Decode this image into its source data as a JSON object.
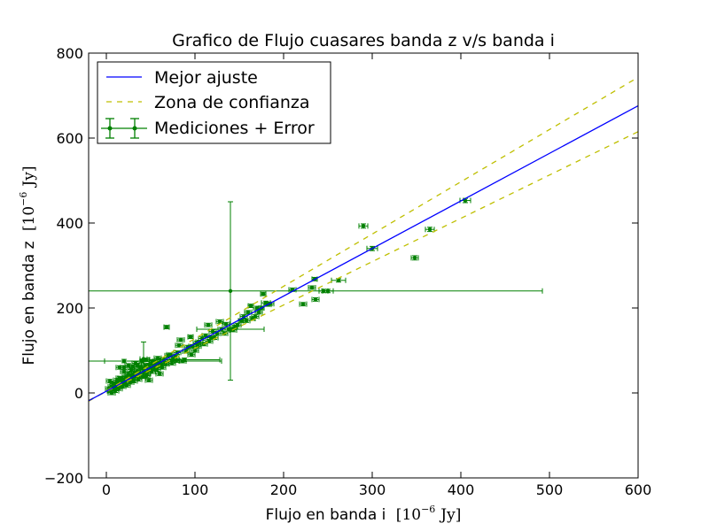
{
  "chart_data": {
    "type": "scatter",
    "title": "Grafico de Flujo cuasares banda z v/s banda i",
    "xlabel": {
      "prefix": "Flujo en banda i",
      "unit_base": "10",
      "unit_exp": "−6",
      "unit_name": "Jy"
    },
    "ylabel": {
      "prefix": "Flujo en banda z",
      "unit_base": "10",
      "unit_exp": "−6",
      "unit_name": "Jy"
    },
    "xlim": [
      -20,
      600
    ],
    "ylim": [
      -200,
      800
    ],
    "xticks": [
      0,
      100,
      200,
      300,
      400,
      500,
      600
    ],
    "yticks": [
      -200,
      0,
      200,
      400,
      600,
      800
    ],
    "grid": false,
    "legend_position": "upper-left",
    "legend": [
      "Mejor ajuste",
      "Zona de confianza",
      "Mediciones + Error"
    ],
    "colors": {
      "fit": "#0000ff",
      "confidence": "#bfbf00",
      "measurements": "#008000"
    },
    "fit_line": {
      "name": "Mejor ajuste",
      "slope": 1.12,
      "intercept": 4
    },
    "confidence_lines": [
      {
        "name": "Zona de confianza",
        "slope": 1.23,
        "intercept": 5
      },
      {
        "name": "",
        "slope": 1.02,
        "intercept": 3
      }
    ],
    "series": [
      {
        "name": "Mediciones + Error",
        "points": [
          [
            405,
            453,
            6,
            5
          ],
          [
            365,
            385,
            5,
            5
          ],
          [
            348,
            318,
            4,
            5
          ],
          [
            300,
            340,
            6,
            5
          ],
          [
            290,
            393,
            5,
            5
          ],
          [
            262,
            265,
            8,
            4
          ],
          [
            250,
            240,
            6,
            4
          ],
          [
            245,
            240,
            5,
            4
          ],
          [
            236,
            220,
            4,
            4
          ],
          [
            232,
            248,
            4,
            4
          ],
          [
            235,
            268,
            3,
            4
          ],
          [
            222,
            209,
            4,
            4
          ],
          [
            210,
            243,
            4,
            4
          ],
          [
            185,
            210,
            4,
            4
          ],
          [
            180,
            212,
            5,
            4
          ],
          [
            177,
            233,
            3,
            4
          ],
          [
            175,
            200,
            3,
            4
          ],
          [
            172,
            190,
            4,
            4
          ],
          [
            168,
            180,
            4,
            4
          ],
          [
            165,
            175,
            3,
            4
          ],
          [
            163,
            205,
            3,
            4
          ],
          [
            155,
            180,
            4,
            4
          ],
          [
            152,
            170,
            3,
            4
          ],
          [
            148,
            160,
            4,
            4
          ],
          [
            145,
            155,
            3,
            4
          ],
          [
            140,
            240,
            352,
            210
          ],
          [
            135,
            162,
            4,
            4
          ],
          [
            130,
            150,
            4,
            4
          ],
          [
            128,
            168,
            4,
            4
          ],
          [
            125,
            140,
            4,
            4
          ],
          [
            120,
            145,
            4,
            4
          ],
          [
            118,
            130,
            4,
            4
          ],
          [
            115,
            160,
            4,
            4
          ],
          [
            112,
            135,
            4,
            4
          ],
          [
            108,
            128,
            4,
            4
          ],
          [
            105,
            120,
            4,
            4
          ],
          [
            102,
            118,
            4,
            4
          ],
          [
            100,
            100,
            4,
            4
          ],
          [
            97,
            110,
            4,
            4
          ],
          [
            95,
            132,
            3,
            4
          ],
          [
            92,
            108,
            4,
            4
          ],
          [
            90,
            98,
            4,
            4
          ],
          [
            88,
            78,
            40,
            4
          ],
          [
            86,
            75,
            4,
            4
          ],
          [
            84,
            125,
            4,
            4
          ],
          [
            82,
            112,
            4,
            4
          ],
          [
            80,
            95,
            4,
            4
          ],
          [
            78,
            85,
            4,
            4
          ],
          [
            75,
            80,
            4,
            4
          ],
          [
            72,
            90,
            4,
            4
          ],
          [
            70,
            88,
            4,
            4
          ],
          [
            68,
            155,
            3,
            4
          ],
          [
            65,
            78,
            4,
            4
          ],
          [
            62,
            70,
            4,
            4
          ],
          [
            60,
            65,
            4,
            4
          ],
          [
            58,
            82,
            4,
            4
          ],
          [
            56,
            75,
            4,
            4
          ],
          [
            54,
            60,
            4,
            4
          ],
          [
            52,
            72,
            4,
            4
          ],
          [
            50,
            58,
            4,
            4
          ],
          [
            48,
            66,
            4,
            4
          ],
          [
            47,
            55,
            4,
            4
          ],
          [
            45,
            78,
            4,
            4
          ],
          [
            44,
            65,
            4,
            4
          ],
          [
            42,
            50,
            4,
            4
          ],
          [
            42,
            80,
            4,
            40
          ],
          [
            40,
            58,
            4,
            4
          ],
          [
            38,
            60,
            4,
            4
          ],
          [
            37,
            45,
            4,
            4
          ],
          [
            35,
            52,
            4,
            4
          ],
          [
            34,
            40,
            4,
            4
          ],
          [
            33,
            70,
            4,
            4
          ],
          [
            32,
            48,
            4,
            4
          ],
          [
            30,
            42,
            4,
            4
          ],
          [
            29,
            35,
            4,
            4
          ],
          [
            28,
            55,
            4,
            4
          ],
          [
            27,
            40,
            4,
            4
          ],
          [
            26,
            32,
            4,
            4
          ],
          [
            25,
            65,
            4,
            4
          ],
          [
            24,
            30,
            4,
            4
          ],
          [
            22,
            38,
            4,
            4
          ],
          [
            21,
            25,
            4,
            4
          ],
          [
            20,
            50,
            4,
            4
          ],
          [
            19,
            30,
            4,
            4
          ],
          [
            18,
            22,
            4,
            4
          ],
          [
            17,
            35,
            4,
            4
          ],
          [
            16,
            20,
            4,
            4
          ],
          [
            15,
            60,
            4,
            4
          ],
          [
            14,
            25,
            4,
            4
          ],
          [
            13,
            18,
            4,
            4
          ],
          [
            12,
            30,
            4,
            4
          ],
          [
            11,
            15,
            4,
            4
          ],
          [
            10,
            20,
            4,
            4
          ],
          [
            9,
            12,
            4,
            4
          ],
          [
            8,
            22,
            4,
            4
          ],
          [
            7,
            8,
            4,
            4
          ],
          [
            6,
            15,
            4,
            4
          ],
          [
            5,
            5,
            4,
            4
          ],
          [
            4,
            28,
            4,
            4
          ],
          [
            3,
            10,
            4,
            4
          ],
          [
            6,
            0,
            4,
            4
          ],
          [
            10,
            5,
            4,
            4
          ],
          [
            14,
            10,
            4,
            4
          ],
          [
            18,
            15,
            4,
            4
          ],
          [
            23,
            18,
            4,
            4
          ],
          [
            27,
            25,
            4,
            4
          ],
          [
            31,
            28,
            4,
            4
          ],
          [
            36,
            32,
            4,
            4
          ],
          [
            41,
            38,
            4,
            4
          ],
          [
            46,
            45,
            4,
            4
          ],
          [
            51,
            50,
            4,
            4
          ],
          [
            57,
            55,
            4,
            4
          ],
          [
            63,
            60,
            4,
            4
          ],
          [
            67,
            68,
            4,
            4
          ],
          [
            74,
            70,
            4,
            4
          ],
          [
            79,
            76,
            4,
            4
          ],
          [
            96,
            90,
            4,
            4
          ],
          [
            103,
            110,
            4,
            4
          ],
          [
            110,
            115,
            4,
            4
          ],
          [
            116,
            122,
            4,
            4
          ],
          [
            122,
            130,
            4,
            4
          ],
          [
            133,
            140,
            4,
            4
          ],
          [
            138,
            150,
            4,
            4
          ],
          [
            143,
            148,
            4,
            4
          ],
          [
            158,
            170,
            4,
            4
          ],
          [
            160,
            190,
            4,
            4
          ],
          [
            170,
            200,
            4,
            4
          ],
          [
            182,
            208,
            4,
            4
          ],
          [
            55,
            70,
            4,
            4
          ],
          [
            35,
            65,
            4,
            4
          ],
          [
            25,
            45,
            4,
            4
          ],
          [
            20,
            60,
            4,
            4
          ],
          [
            30,
            62,
            4,
            4
          ],
          [
            45,
            40,
            4,
            4
          ],
          [
            60,
            45,
            4,
            4
          ],
          [
            20,
            75,
            22,
            4
          ],
          [
            40,
            75,
            90,
            4
          ],
          [
            140,
            150,
            38,
            4
          ],
          [
            48,
            30,
            4,
            4
          ],
          [
            15,
            35,
            4,
            4
          ]
        ]
      }
    ]
  }
}
